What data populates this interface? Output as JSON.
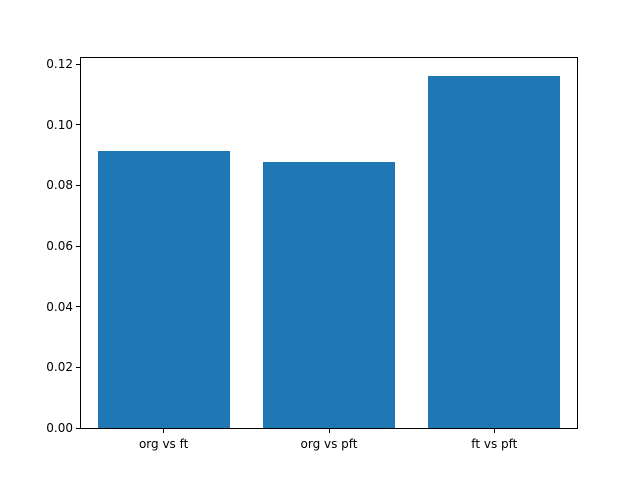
{
  "chart_data": {
    "type": "bar",
    "categories": [
      "org vs ft",
      "org vs pft",
      "ft vs pft"
    ],
    "values": [
      0.0915,
      0.0878,
      0.116
    ],
    "title": "",
    "xlabel": "",
    "ylabel": "",
    "ylim": [
      0.0,
      0.122
    ],
    "yticks": [
      0.0,
      0.02,
      0.04,
      0.06,
      0.08,
      0.1,
      0.12
    ],
    "ytick_format_decimals": 2,
    "bar_color": "#1f77b4",
    "bar_width_fraction": 0.8,
    "grid": false,
    "legend": null,
    "frame_color": "#000000",
    "background_color": "#ffffff"
  }
}
